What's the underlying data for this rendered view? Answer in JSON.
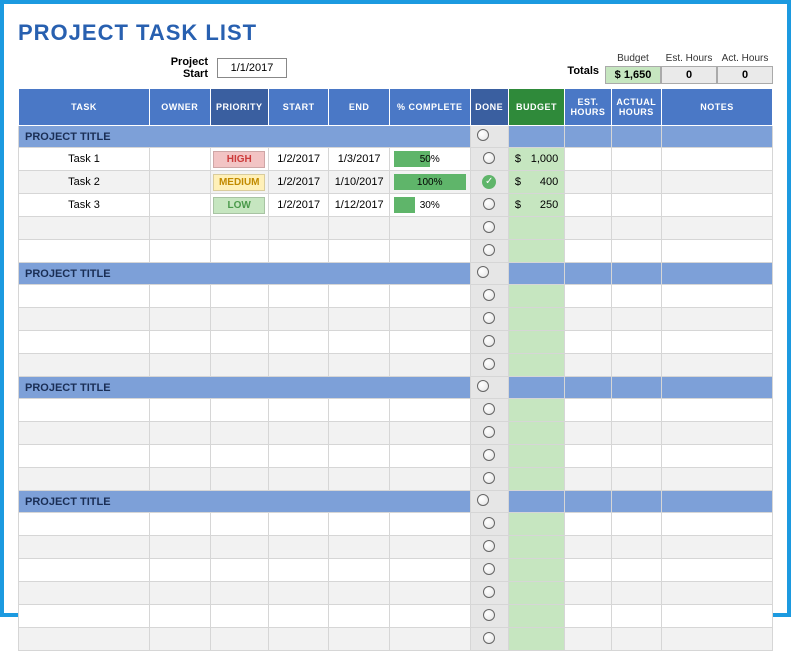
{
  "title": "PROJECT TASK LIST",
  "project_start": {
    "label": "Project Start",
    "value": "1/1/2017"
  },
  "totals": {
    "label": "Totals",
    "budget": {
      "header": "Budget",
      "value": "$   1,650"
    },
    "est_hours": {
      "header": "Est. Hours",
      "value": "0"
    },
    "act_hours": {
      "header": "Act. Hours",
      "value": "0"
    }
  },
  "columns": {
    "task": "TASK",
    "owner": "OWNER",
    "priority": "PRIORITY",
    "start": "START",
    "end": "END",
    "pct": "% COMPLETE",
    "done": "DONE",
    "budget": "BUDGET",
    "esthours": "EST. HOURS",
    "acthours": "ACTUAL HOURS",
    "notes": "NOTES"
  },
  "col_widths": {
    "task": 130,
    "owner": 60,
    "priority": 58,
    "start": 60,
    "end": 60,
    "pct": 80,
    "done": 38,
    "budget": 56,
    "esthours": 46,
    "acthours": 50,
    "notes": 110
  },
  "styling": {
    "frame_border": "#1c9ae0",
    "title_color": "#2860b0",
    "header_bg": "#4a78c6",
    "header_dark_bg": "#3a5fa0",
    "header_green_bg": "#2f8a3a",
    "section_bg": "#7da0d8",
    "alt_row_bg": "#f2f2f2",
    "done_col_bg": "#e6e6e6",
    "budget_col_bg": "#c6e6c0",
    "pct_bar_color": "#5fb56a",
    "priority_colors": {
      "high": {
        "bg": "#f2c4c4",
        "fg": "#cc3b3b"
      },
      "medium": {
        "bg": "#fff0b8",
        "fg": "#c28a00"
      },
      "low": {
        "bg": "#c6e6c0",
        "fg": "#4a9a4a"
      }
    }
  },
  "sections": [
    {
      "title": "PROJECT TITLE",
      "rows": [
        {
          "task": "Task 1",
          "owner": "",
          "priority": "HIGH",
          "priority_class": "high",
          "start": "1/2/2017",
          "end": "1/3/2017",
          "pct": 50,
          "done": false,
          "budget": "1,000"
        },
        {
          "task": "Task 2",
          "owner": "",
          "priority": "MEDIUM",
          "priority_class": "medium",
          "start": "1/2/2017",
          "end": "1/10/2017",
          "pct": 100,
          "done": true,
          "budget": "400"
        },
        {
          "task": "Task 3",
          "owner": "",
          "priority": "LOW",
          "priority_class": "low",
          "start": "1/2/2017",
          "end": "1/12/2017",
          "pct": 30,
          "done": false,
          "budget": "250"
        },
        {},
        {}
      ]
    },
    {
      "title": "PROJECT TITLE",
      "rows": [
        {},
        {},
        {},
        {}
      ]
    },
    {
      "title": "PROJECT TITLE",
      "rows": [
        {},
        {},
        {},
        {}
      ]
    },
    {
      "title": "PROJECT TITLE",
      "rows": [
        {},
        {},
        {},
        {},
        {},
        {}
      ]
    }
  ]
}
